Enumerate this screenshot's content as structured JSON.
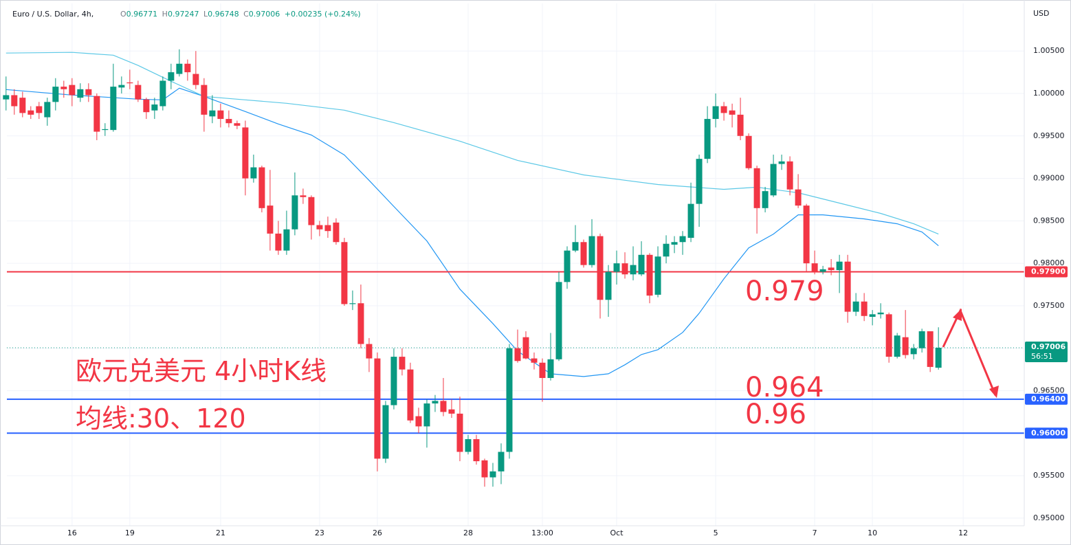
{
  "header": {
    "symbol": "Euro / U.S. Dollar, 4h,",
    "ohlc_labels": [
      "O",
      "H",
      "L",
      "C"
    ],
    "change": "+0.00235 (+0.24%)"
  },
  "chart_data": {
    "type": "candlestick",
    "currency": "USD",
    "up_color": "#089981",
    "down_color": "#f23645",
    "xlim": [
      0.1,
      123.4
    ],
    "xticks": [
      {
        "value": 8,
        "label": "16"
      },
      {
        "value": 15,
        "label": "19"
      },
      {
        "value": 26,
        "label": "21"
      },
      {
        "value": 38,
        "label": "23"
      },
      {
        "value": 45,
        "label": "26"
      },
      {
        "value": 56,
        "label": "28"
      },
      {
        "value": 65,
        "label": "13:00"
      },
      {
        "value": 74,
        "label": "Oct"
      },
      {
        "value": 86,
        "label": "5"
      },
      {
        "value": 98,
        "label": "7"
      },
      {
        "value": 105,
        "label": "10"
      },
      {
        "value": 116,
        "label": "12"
      }
    ],
    "ylim": [
      0.9491,
      1.0106
    ],
    "yticks": [
      {
        "value": 1.005,
        "label": "1.00500"
      },
      {
        "value": 1.0,
        "label": "1.00000"
      },
      {
        "value": 0.995,
        "label": "0.99500"
      },
      {
        "value": 0.99,
        "label": "0.99000"
      },
      {
        "value": 0.985,
        "label": "0.98500"
      },
      {
        "value": 0.98,
        "label": "0.98000"
      },
      {
        "value": 0.975,
        "label": "0.97500"
      },
      {
        "value": 0.97,
        "label": "0.97000"
      },
      {
        "value": 0.965,
        "label": "0.96500"
      },
      {
        "value": 0.96,
        "label": "0.96000"
      },
      {
        "value": 0.955,
        "label": "0.95500"
      },
      {
        "value": 0.95,
        "label": "0.95000"
      }
    ],
    "grid": true,
    "open": [
      0.9993,
      0.9998,
      0.9995,
      0.998,
      0.9985,
      0.9972,
      0.999,
      1.0008,
      1.001,
      0.9995,
      1.0005,
      0.9997,
      0.9957,
      0.9957,
      1.0007,
      1.0013,
      1.001,
      0.9993,
      0.998,
      0.9985,
      1.0015,
      1.0023,
      1.0035,
      1.0023,
      1.001,
      0.9973,
      0.998,
      0.997,
      0.9965,
      0.996,
      0.99,
      0.9913,
      0.9868,
      0.9835,
      0.9815,
      0.984,
      0.988,
      0.9878,
      0.9845,
      0.9845,
      0.9848,
      0.9825,
      0.9752,
      0.9753,
      0.9705,
      0.9688,
      0.957,
      0.9633,
      0.969,
      0.9675,
      0.962,
      0.9608,
      0.9635,
      0.9638,
      0.9628,
      0.9623,
      0.9578,
      0.9593,
      0.9568,
      0.9548,
      0.9555,
      0.9578,
      0.97,
      0.9713,
      0.9688,
      0.9683,
      0.9665,
      0.9687,
      0.9778,
      0.9815,
      0.9825,
      0.9798,
      0.9832,
      0.9757,
      0.979,
      0.98,
      0.9787,
      0.9787,
      0.981,
      0.9763,
      0.9808,
      0.9822,
      0.9825,
      0.983,
      0.987,
      0.9923,
      0.997,
      0.9985,
      0.998,
      0.9975,
      0.995,
      0.9912,
      0.9865,
      0.988,
      0.9917,
      0.992,
      0.9887,
      0.9868,
      0.98,
      0.979,
      0.9795,
      0.9792,
      0.9802,
      0.9743,
      0.9755,
      0.9737,
      0.974,
      0.974,
      0.969,
      0.9713,
      0.9693,
      0.97,
      0.972,
      0.96771
    ],
    "high": [
      1.002,
      1.0005,
      1.0002,
      0.9985,
      0.999,
      0.9995,
      1.0018,
      1.0015,
      1.0018,
      1.0012,
      1.0012,
      1.0,
      0.9965,
      1.0035,
      1.002,
      1.0028,
      1.0015,
      0.9995,
      0.9995,
      1.002,
      1.0035,
      1.0052,
      1.004,
      1.005,
      1.0018,
      0.9998,
      0.9988,
      0.998,
      0.9968,
      0.9968,
      0.9928,
      0.9915,
      0.991,
      0.985,
      0.9862,
      0.9907,
      0.9888,
      0.988,
      0.985,
      0.9855,
      0.9853,
      0.983,
      0.9768,
      0.9775,
      0.9712,
      0.9695,
      0.9638,
      0.97,
      0.97,
      0.9683,
      0.963,
      0.964,
      0.9645,
      0.9665,
      0.964,
      0.9643,
      0.9598,
      0.9598,
      0.957,
      0.9565,
      0.9588,
      0.9705,
      0.9722,
      0.972,
      0.9695,
      0.9688,
      0.9718,
      0.979,
      0.982,
      0.9845,
      0.9828,
      0.9852,
      0.9835,
      0.9798,
      0.9815,
      0.9813,
      0.982,
      0.9826,
      0.9812,
      0.982,
      0.9833,
      0.9832,
      0.9838,
      0.9895,
      0.9928,
      0.9985,
      1.0,
      0.999,
      0.9988,
      0.9995,
      0.9953,
      0.9915,
      0.989,
      0.9928,
      0.9928,
      0.9926,
      0.9905,
      0.987,
      0.9815,
      0.9797,
      0.9805,
      0.981,
      0.981,
      0.9765,
      0.9765,
      0.9745,
      0.9753,
      0.9742,
      0.9718,
      0.9745,
      0.9705,
      0.9723,
      0.972,
      0.97247
    ],
    "low": [
      0.998,
      0.9975,
      0.9972,
      0.997,
      0.997,
      0.9962,
      0.998,
      0.9995,
      0.9985,
      0.999,
      0.999,
      0.9945,
      0.995,
      0.9955,
      1.0,
      1.0005,
      0.999,
      0.997,
      0.997,
      0.998,
      1.0005,
      1.002,
      1.0015,
      1.0005,
      0.9955,
      0.9965,
      0.996,
      0.996,
      0.9958,
      0.988,
      0.9895,
      0.986,
      0.9815,
      0.981,
      0.981,
      0.9833,
      0.987,
      0.9828,
      0.9832,
      0.983,
      0.9822,
      0.975,
      0.9745,
      0.97,
      0.9672,
      0.9555,
      0.9565,
      0.9628,
      0.9668,
      0.9612,
      0.96,
      0.9583,
      0.9625,
      0.962,
      0.9618,
      0.9567,
      0.9575,
      0.9563,
      0.9537,
      0.9537,
      0.954,
      0.957,
      0.9683,
      0.9687,
      0.9675,
      0.9637,
      0.9662,
      0.9685,
      0.977,
      0.9813,
      0.9795,
      0.9795,
      0.9735,
      0.9737,
      0.9775,
      0.9782,
      0.978,
      0.9785,
      0.9753,
      0.976,
      0.98,
      0.9812,
      0.981,
      0.9825,
      0.9843,
      0.9918,
      0.996,
      0.9968,
      0.996,
      0.9945,
      0.991,
      0.9835,
      0.986,
      0.9878,
      0.991,
      0.988,
      0.9865,
      0.979,
      0.9787,
      0.9787,
      0.9786,
      0.9765,
      0.973,
      0.9738,
      0.9732,
      0.9727,
      0.9735,
      0.9683,
      0.9688,
      0.9688,
      0.9687,
      0.9695,
      0.9672,
      0.96748
    ],
    "close": [
      0.9998,
      0.9985,
      0.9977,
      0.9975,
      0.9977,
      0.999,
      1.0008,
      1.0005,
      0.9998,
      1.0005,
      0.9998,
      0.9955,
      0.9958,
      1.0008,
      1.001,
      1.0012,
      0.9993,
      0.9978,
      0.9987,
      1.0015,
      1.0025,
      1.0035,
      1.0025,
      1.001,
      0.9975,
      0.998,
      0.997,
      0.9965,
      0.9962,
      0.99,
      0.9913,
      0.9865,
      0.9835,
      0.9815,
      0.984,
      0.988,
      0.9878,
      0.9845,
      0.984,
      0.9838,
      0.9825,
      0.9752,
      0.9753,
      0.9705,
      0.9688,
      0.957,
      0.9633,
      0.969,
      0.9675,
      0.9615,
      0.9608,
      0.9635,
      0.9638,
      0.9625,
      0.9623,
      0.9578,
      0.9593,
      0.9567,
      0.9548,
      0.9555,
      0.9578,
      0.97,
      0.9685,
      0.9688,
      0.9683,
      0.9665,
      0.9687,
      0.9778,
      0.9815,
      0.9825,
      0.9798,
      0.9832,
      0.9757,
      0.979,
      0.98,
      0.9787,
      0.9798,
      0.981,
      0.9762,
      0.9808,
      0.9823,
      0.9825,
      0.9832,
      0.987,
      0.9923,
      0.997,
      0.9985,
      0.9977,
      0.9975,
      0.995,
      0.9912,
      0.9865,
      0.9885,
      0.9917,
      0.992,
      0.9887,
      0.9868,
      0.98,
      0.979,
      0.9793,
      0.9792,
      0.9802,
      0.9743,
      0.9755,
      0.9738,
      0.974,
      0.9742,
      0.969,
      0.9715,
      0.9692,
      0.97,
      0.972,
      0.9678,
      0.97006
    ],
    "series": [
      {
        "color": "#2196f3",
        "x": [
          0,
          8,
          16,
          19,
          21,
          24,
          29,
          33,
          37,
          41,
          44,
          47,
          51,
          55,
          59,
          62,
          66,
          70,
          73,
          75,
          77,
          79,
          82,
          84,
          87,
          90,
          93,
          96,
          99,
          104,
          108,
          111,
          113
        ],
        "values": [
          1.00046,
          0.99981,
          0.99933,
          0.99925,
          1.00062,
          0.99965,
          0.99787,
          0.99641,
          0.99511,
          0.99276,
          0.98977,
          0.98669,
          0.98263,
          0.97696,
          0.97291,
          0.96967,
          0.96699,
          0.96667,
          0.96699,
          0.96805,
          0.96926,
          0.96983,
          0.97186,
          0.97412,
          0.97818,
          0.98182,
          0.98344,
          0.98571,
          0.98571,
          0.98523,
          0.98466,
          0.98369,
          0.98207
        ]
      },
      {
        "color": "#5bc8e6",
        "x": [
          0,
          8,
          13,
          16,
          20,
          24,
          29,
          34,
          41,
          47,
          55,
          62,
          70,
          79,
          87,
          91,
          96,
          101,
          106,
          110,
          113
        ],
        "values": [
          1.00476,
          1.00484,
          1.00451,
          1.0033,
          1.00143,
          0.99965,
          0.99925,
          0.99884,
          0.99803,
          0.99657,
          0.99438,
          0.99212,
          0.99041,
          0.98928,
          0.98871,
          0.98896,
          0.98831,
          0.98709,
          0.98588,
          0.98466,
          0.98344
        ]
      }
    ],
    "hlines": [
      {
        "value": 0.979,
        "label": "0.97900",
        "color": "#f23645"
      },
      {
        "value": 0.964,
        "label": "0.96400",
        "color": "#2962ff"
      },
      {
        "value": 0.96,
        "label": "0.96000",
        "color": "#2962ff"
      }
    ],
    "countdown": "56:51",
    "annotations": [
      "0.979",
      "0.964",
      "0.96",
      "欧元兑美元 4小时K线",
      "均线:30、120"
    ]
  }
}
